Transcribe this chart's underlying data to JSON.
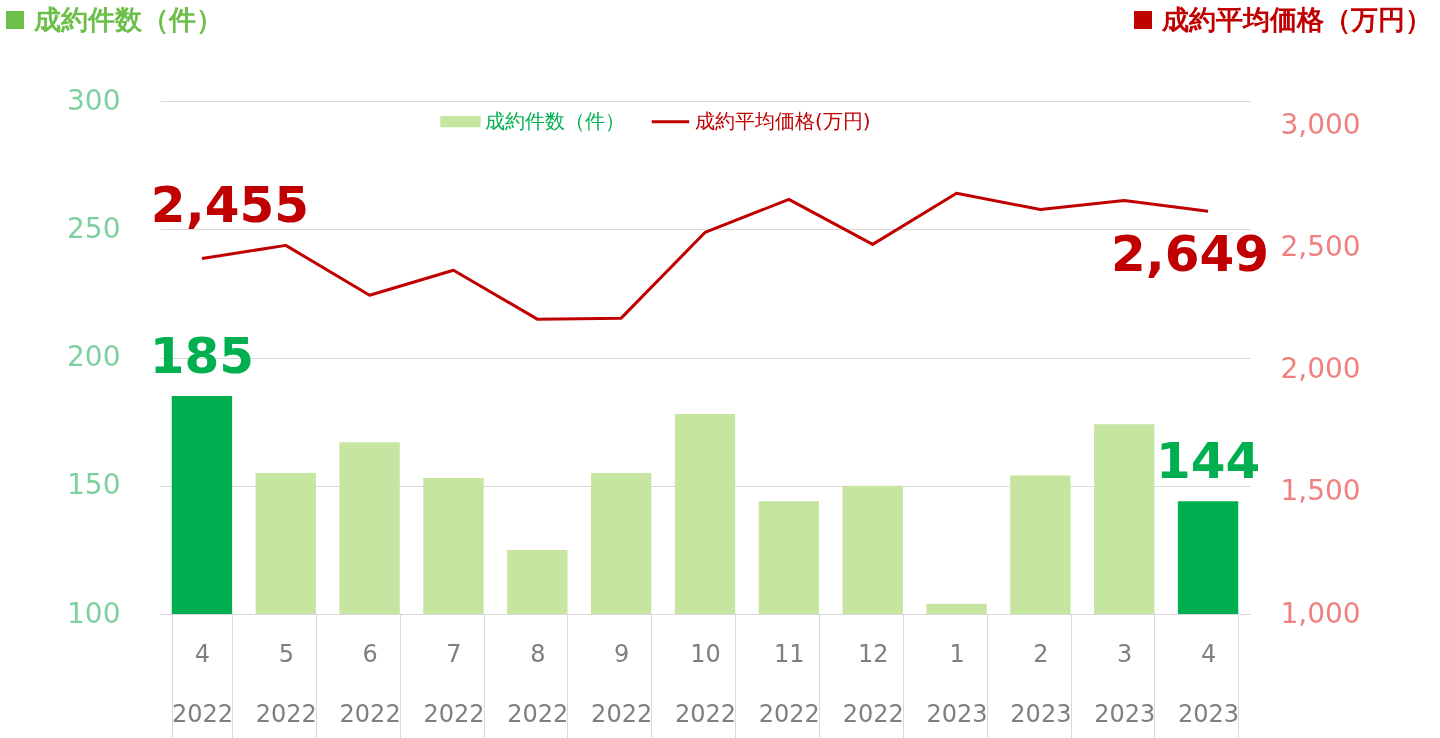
{
  "chart_data": {
    "type": "bar",
    "ylabel": "成約件数（件）",
    "y2label": "成約平均価格（万円）",
    "categories": [
      "4\n2022",
      "5\n2022",
      "6\n2022",
      "7\n2022",
      "8\n2022",
      "9\n2022",
      "10\n2022",
      "11\n2022",
      "12\n2022",
      "1\n2023",
      "2\n2023",
      "3\n2023",
      "4\n2023"
    ],
    "ylim": [
      100,
      300
    ],
    "yticks": [
      100,
      150,
      200,
      250,
      300
    ],
    "y2lim": [
      1000,
      3100
    ],
    "y2ticks": [
      {
        "value": 1000,
        "label": "1,000"
      },
      {
        "value": 1500,
        "label": "1,500"
      },
      {
        "value": 2000,
        "label": "2,000"
      },
      {
        "value": 2500,
        "label": "2,500"
      },
      {
        "value": 3000,
        "label": "3,000"
      }
    ],
    "grid": "y",
    "legend": "top",
    "series": [
      {
        "name": "成約件数（件）",
        "color": "#c5e5a0",
        "colors": [
          "#00b050",
          "#c5e5a0",
          "#c5e5a0",
          "#c5e5a0",
          "#c5e5a0",
          "#c5e5a0",
          "#c5e5a0",
          "#c5e5a0",
          "#c5e5a0",
          "#c5e5a0",
          "#c5e5a0",
          "#c5e5a0",
          "#00b050"
        ],
        "values": [
          185,
          155,
          167,
          153,
          125,
          155,
          178,
          144,
          150,
          104,
          154,
          174,
          144
        ],
        "value_labels": [
          "185",
          null,
          null,
          null,
          null,
          null,
          null,
          null,
          null,
          null,
          null,
          null,
          "144"
        ]
      },
      {
        "name": "成約平均価格(万円)",
        "type": "line",
        "axis": "y2",
        "color": "#c00000",
        "values": [
          2455,
          2509,
          2305,
          2407,
          2207,
          2211,
          2562,
          2697,
          2513,
          2722,
          2656,
          2693,
          2649
        ],
        "value_labels": [
          "2,455",
          null,
          null,
          null,
          null,
          null,
          null,
          null,
          null,
          null,
          null,
          null,
          "2,649"
        ]
      }
    ]
  }
}
